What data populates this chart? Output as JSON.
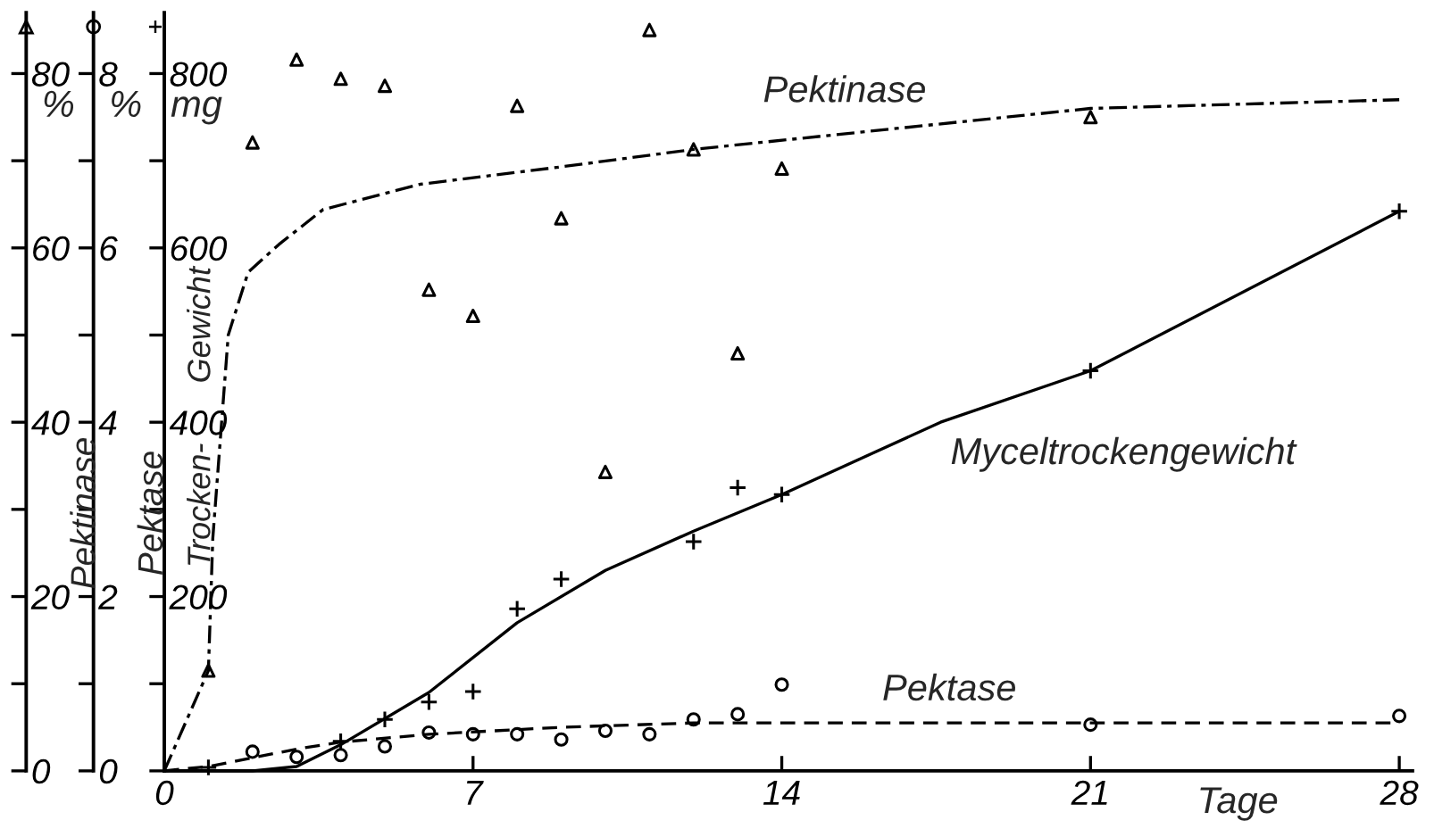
{
  "chart_data": {
    "type": "line",
    "xlabel": "Tage",
    "ylabel": "Trocken- Gewicht",
    "y2label": "Pektase",
    "y3label": "Pektinase",
    "annotations": [
      "%",
      "%",
      "mg"
    ],
    "xlim": [
      0,
      28.3
    ],
    "xticks": [
      0,
      7,
      14,
      21,
      28
    ],
    "ylim": [
      0,
      870
    ],
    "yticks": [
      {
        "value": 0,
        "label": null
      },
      {
        "value": 100,
        "label": null
      },
      200,
      {
        "value": 300,
        "label": null
      },
      400,
      {
        "value": 500,
        "label": null
      },
      600,
      {
        "value": 700,
        "label": null
      },
      800
    ],
    "y2lim": [
      0,
      8.7
    ],
    "y2ticks": [
      0,
      {
        "value": 1,
        "label": null
      },
      2,
      {
        "value": 3,
        "label": null
      },
      4,
      {
        "value": 5,
        "label": null
      },
      6,
      {
        "value": 7,
        "label": null
      },
      8
    ],
    "y3lim": [
      0,
      87
    ],
    "y3ticks": [
      0,
      {
        "value": 10,
        "label": null
      },
      20,
      {
        "value": 30,
        "label": null
      },
      40,
      {
        "value": 50,
        "label": null
      },
      60,
      {
        "value": 70,
        "label": null
      },
      80
    ],
    "grid": false,
    "series": [
      {
        "type": "scatter",
        "axis": "y3",
        "marker": "triangle",
        "color": "#000000",
        "x": [
          1,
          2,
          3,
          4,
          5,
          6,
          7,
          8,
          9,
          10,
          11,
          12,
          13,
          14,
          21
        ],
        "values": [
          11.5,
          72.1,
          81.6,
          79.4,
          78.6,
          55.2,
          52.2,
          76.3,
          63.4,
          34.3,
          85,
          71.3,
          47.9,
          69.1,
          75.0
        ]
      },
      {
        "name": "Pektinase",
        "axis": "y3",
        "line_style": "dashdot",
        "color": "#000000",
        "x": [
          0,
          1,
          1.1,
          1.3,
          1.45,
          1.9,
          2.6,
          3.6,
          5.8,
          9,
          12,
          21,
          28
        ],
        "values": [
          0,
          11.5,
          26.7,
          40,
          50,
          57.2,
          60.4,
          64.4,
          67.3,
          69.3,
          71.3,
          76,
          77
        ]
      },
      {
        "type": "scatter",
        "axis": "y",
        "marker": "cross",
        "color": "#000000",
        "x": [
          1,
          4,
          5,
          6,
          7,
          8,
          9,
          12,
          13,
          14,
          21,
          28
        ],
        "values": [
          4,
          34,
          59,
          79,
          91,
          186,
          220,
          263,
          325,
          317,
          459,
          642
        ]
      },
      {
        "name": "Myceltrockengewicht",
        "axis": "y",
        "line_style": "solid",
        "color": "#000000",
        "x": [
          0,
          2,
          3,
          4,
          6,
          8,
          10,
          12,
          14,
          17.6,
          21,
          28
        ],
        "values": [
          0,
          0,
          5,
          30,
          90,
          170,
          230,
          275,
          317,
          400,
          459,
          642
        ]
      },
      {
        "type": "scatter",
        "axis": "y2",
        "marker": "circle",
        "color": "#000000",
        "x": [
          2,
          3,
          4,
          5,
          6,
          7,
          8,
          9,
          10,
          11,
          12,
          13,
          14,
          21,
          28
        ],
        "values": [
          0.22,
          0.16,
          0.18,
          0.28,
          0.44,
          0.42,
          0.42,
          0.36,
          0.46,
          0.42,
          0.59,
          0.65,
          0.99,
          0.53,
          0.63
        ]
      },
      {
        "name": "Pektase",
        "axis": "y2",
        "line_style": "dashed",
        "color": "#000000",
        "x": [
          0,
          1,
          2,
          3,
          4,
          6,
          9,
          12,
          17.8,
          21,
          28
        ],
        "values": [
          0,
          0.05,
          0.15,
          0.25,
          0.33,
          0.42,
          0.5,
          0.55,
          0.55,
          0.55,
          0.55
        ]
      }
    ]
  }
}
